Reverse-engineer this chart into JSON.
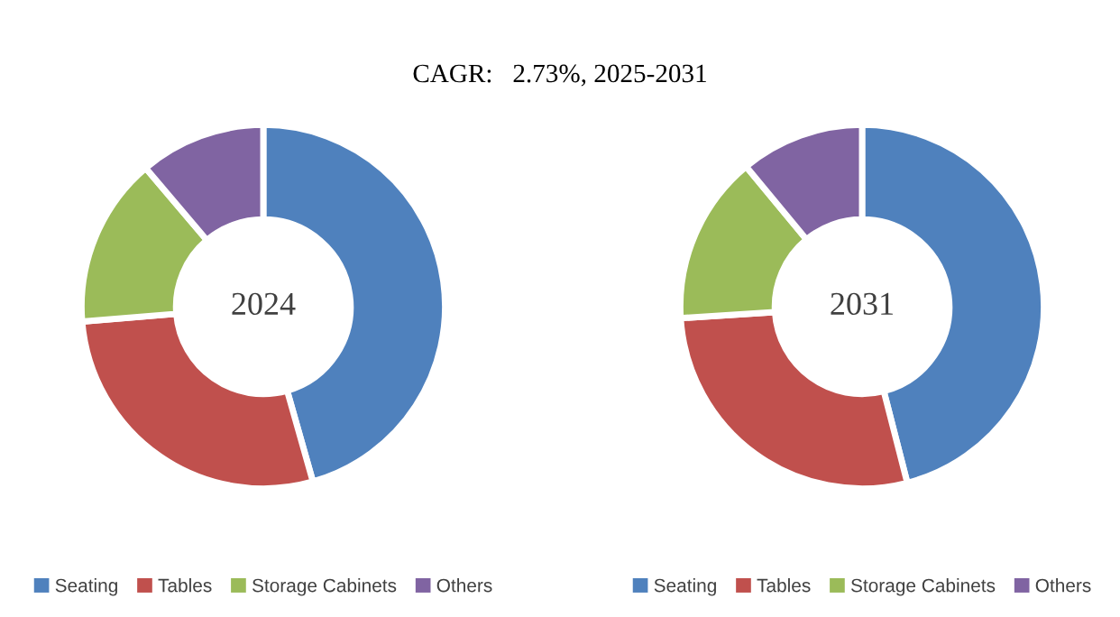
{
  "chart_data": [
    {
      "type": "donut",
      "title": "CAGR:   2.73%, 2025-2031",
      "annotations": [
        "2024"
      ],
      "categories": [
        "Seating",
        "Tables",
        "Storage Cabinets",
        "Others"
      ],
      "values": [
        45.6,
        28.1,
        15.1,
        11.2
      ],
      "colors": [
        "#4f81bd",
        "#c0504d",
        "#9bbb59",
        "#8064a2"
      ],
      "legend": "bottom"
    },
    {
      "type": "donut",
      "annotations": [
        "2031"
      ],
      "categories": [
        "Seating",
        "Tables",
        "Storage Cabinets",
        "Others"
      ],
      "values": [
        46.0,
        28.0,
        15.0,
        11.0
      ],
      "colors": [
        "#4f81bd",
        "#c0504d",
        "#9bbb59",
        "#8064a2"
      ],
      "legend": "bottom"
    }
  ]
}
